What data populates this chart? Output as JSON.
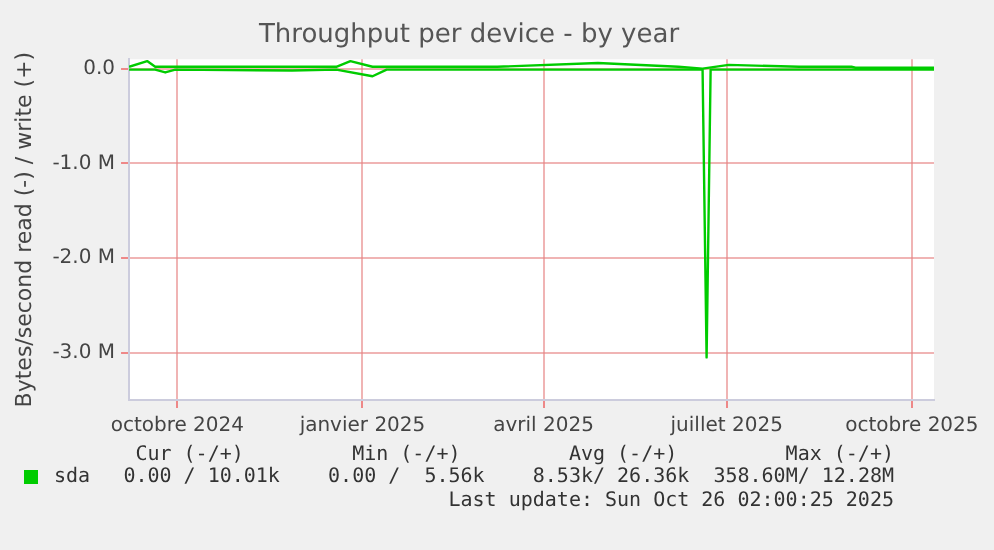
{
  "chart_data": {
    "type": "line",
    "title": "Throughput per device - by year",
    "ylabel": "Bytes/second read (-) / write (+)",
    "series": [
      {
        "name": "sda",
        "color": "#00cc00",
        "x": [
          "2024-09-07",
          "2024-09-16",
          "2024-09-20",
          "2024-11-27",
          "2024-12-19",
          "2024-12-26",
          "2025-01-06",
          "2025-03-09",
          "2025-04-28",
          "2025-06-07",
          "2025-06-19",
          "2025-07-02",
          "2025-08-06",
          "2025-09-01",
          "2025-09-03",
          "2025-10-12"
        ],
        "values": [
          0.02,
          0.08,
          0.02,
          0.02,
          0.02,
          0.08,
          0.02,
          0.02,
          0.06,
          0.02,
          0.0,
          0.04,
          0.02,
          0.02,
          0.01,
          0.01
        ]
      },
      {
        "color": "#00cc00",
        "x": [
          "2024-09-07",
          "2024-09-20",
          "2024-09-25",
          "2024-09-30",
          "2024-11-27",
          "2024-12-19",
          "2025-01-06",
          "2025-01-13",
          "2025-03-09",
          "2025-06-19",
          "2025-06-21",
          "2025-06-23",
          "2025-08-06",
          "2025-10-12"
        ],
        "values": [
          -0.01,
          -0.01,
          -0.04,
          -0.01,
          -0.02,
          -0.01,
          -0.08,
          -0.01,
          -0.01,
          -0.01,
          -3.05,
          -0.01,
          -0.01,
          -0.01
        ]
      }
    ],
    "xlim": [
      "2024-09-07",
      "2025-10-12"
    ],
    "xticks": [
      {
        "value": "2024-10-01",
        "label": "octobre 2024"
      },
      {
        "value": "2025-01-01",
        "label": "janvier 2025"
      },
      {
        "value": "2025-04-01",
        "label": "avril 2025"
      },
      {
        "value": "2025-07-01",
        "label": "juillet 2025"
      },
      {
        "value": "2025-10-01",
        "label": "octobre 2025"
      }
    ],
    "ylim": [
      -3.5,
      0.1
    ],
    "yticks": [
      {
        "value": 0,
        "label": "0.0"
      },
      {
        "value": -1,
        "label": "-1.0 M"
      },
      {
        "value": -2,
        "label": "-2.0 M"
      },
      {
        "value": -3,
        "label": "-3.0 M"
      }
    ],
    "grid": true,
    "legend": "bottom left",
    "marker": "none",
    "line_style": "solid",
    "annotations": [
      "Cur (-/+)         Min (-/+)         Avg (-/+)         Max (-/+)",
      "0.00 / 10.01k    0.00 /  5.56k    8.53k/ 26.36k  358.60M/ 12.28M",
      "Last update: Sun Oct 26 02:00:25 2025"
    ]
  }
}
